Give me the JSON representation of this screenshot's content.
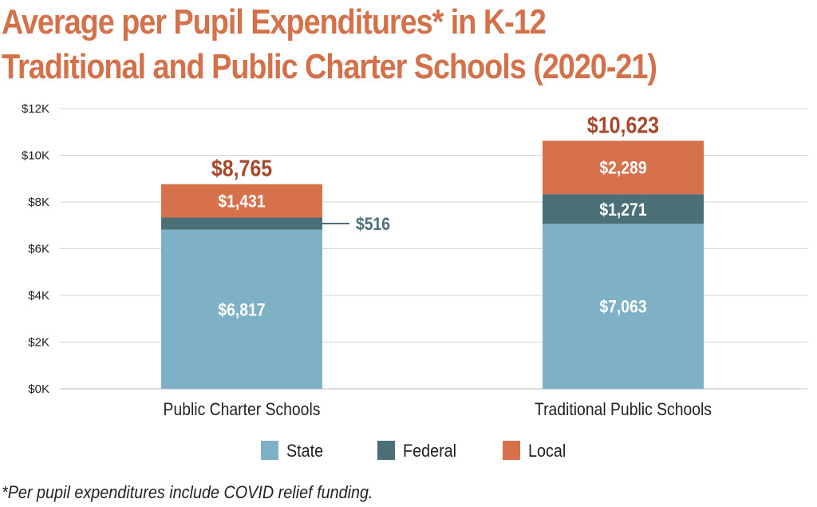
{
  "chart_data": {
    "type": "bar",
    "stacked": true,
    "title_lines": [
      "Average per Pupil Expenditures* in K-12",
      "Traditional and Public Charter Schools (2020-21)"
    ],
    "categories": [
      "Public Charter Schools",
      "Traditional Public Schools"
    ],
    "series": [
      {
        "name": "State",
        "color": "#7eb1c6",
        "values": [
          6817,
          7063
        ],
        "labels": [
          "$6,817",
          "$7,063"
        ]
      },
      {
        "name": "Federal",
        "color": "#4a6f77",
        "values": [
          516,
          1271
        ],
        "labels": [
          "$516",
          "$1,271"
        ]
      },
      {
        "name": "Local",
        "color": "#d7714c",
        "values": [
          1431,
          2289
        ],
        "labels": [
          "$1,431",
          "$2,289"
        ]
      }
    ],
    "totals": [
      8765,
      10623
    ],
    "total_labels": [
      "$8,765",
      "$10,623"
    ],
    "ylim": [
      0,
      12000
    ],
    "yticks": [
      0,
      2000,
      4000,
      6000,
      8000,
      10000,
      12000
    ],
    "ytick_labels": [
      "$0K",
      "$2K",
      "$4K",
      "$6K",
      "$8K",
      "$10K",
      "$12K"
    ],
    "grid": true,
    "legend_position": "bottom-center",
    "total_label_color": "#a9472b",
    "external_label_color": "#4a6f77",
    "footnote": "*Per pupil expenditures include COVID relief funding."
  }
}
